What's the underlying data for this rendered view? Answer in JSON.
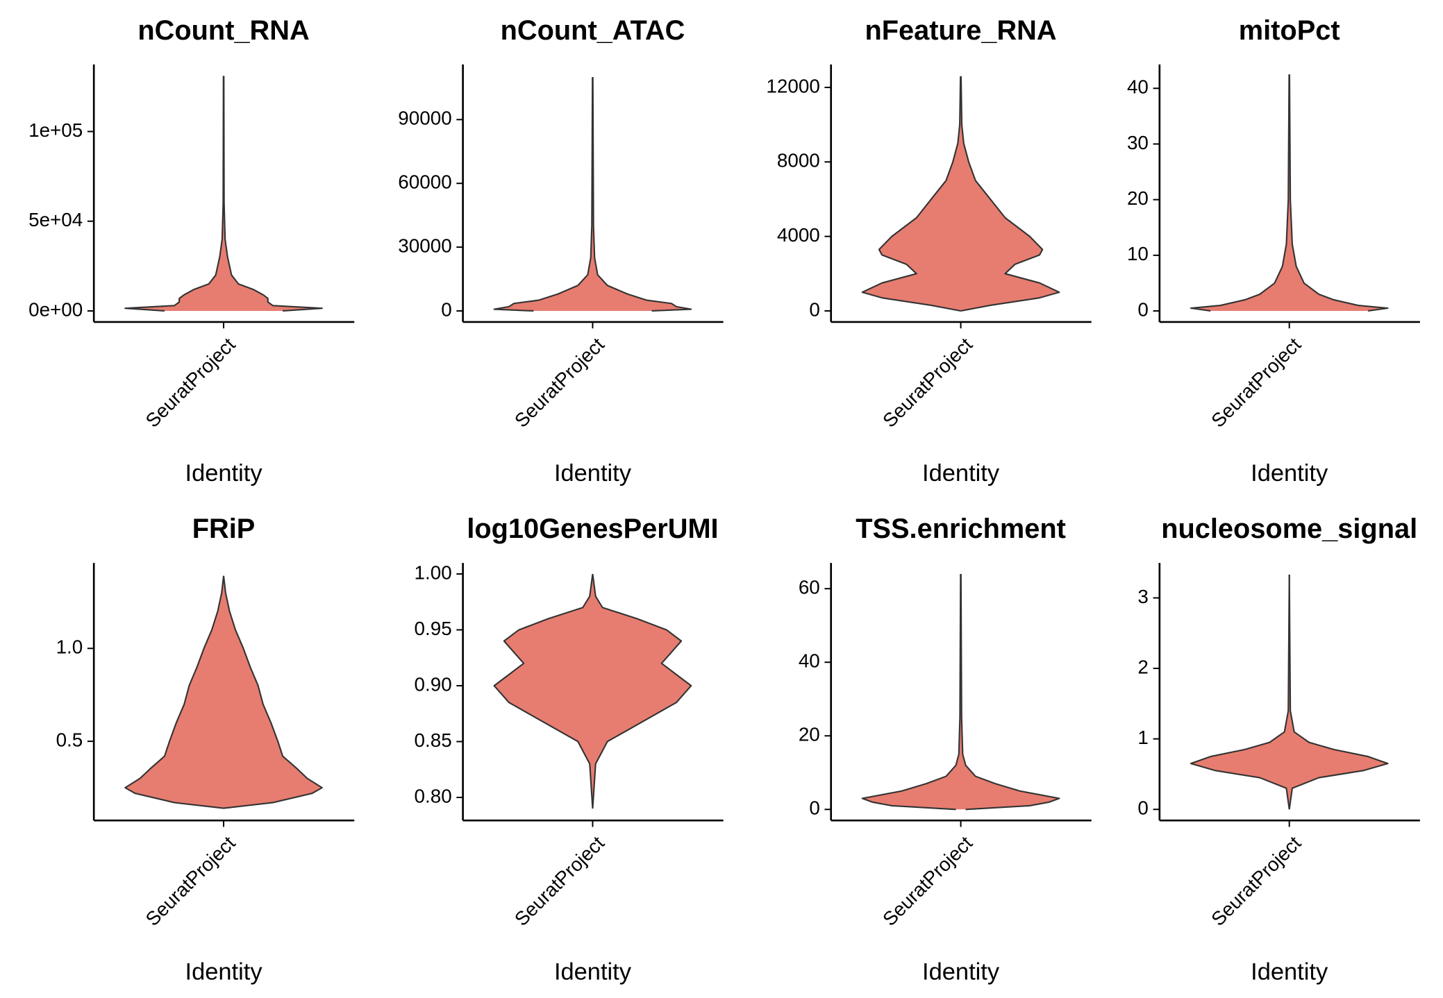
{
  "chart_data": [
    {
      "type": "violin",
      "title": "nCount_RNA",
      "categories": [
        "SeuratProject"
      ],
      "x_label": "Identity",
      "color": "#E77D70",
      "ylim": [
        -6150,
        137400
      ],
      "yticks": [
        {
          "value": 0,
          "label": "0e+00"
        },
        {
          "value": 50000,
          "label": "5e+04"
        },
        {
          "value": 100000,
          "label": "1e+05"
        }
      ],
      "values": [
        0,
        1500,
        3000,
        5000,
        7000,
        9000,
        12000,
        15000,
        20000,
        30000,
        40000,
        60000,
        131000
      ],
      "widths": [
        0.6,
        1.0,
        0.5,
        0.45,
        0.45,
        0.4,
        0.3,
        0.15,
        0.08,
        0.04,
        0.015,
        0.005,
        0.002
      ]
    },
    {
      "type": "violin",
      "title": "nCount_ATAC",
      "categories": [
        "SeuratProject"
      ],
      "x_label": "Identity",
      "color": "#E77D70",
      "ylim": [
        -5190,
        115960
      ],
      "yticks": [
        0,
        30000,
        60000,
        90000
      ],
      "values": [
        0,
        800,
        2000,
        3500,
        5000,
        8000,
        12000,
        17000,
        25000,
        40000,
        110000
      ],
      "widths": [
        0.6,
        1.0,
        0.85,
        0.8,
        0.55,
        0.35,
        0.15,
        0.05,
        0.02,
        0.008,
        0.002
      ]
    },
    {
      "type": "violin",
      "title": "nFeature_RNA",
      "categories": [
        "SeuratProject"
      ],
      "x_label": "Identity",
      "color": "#E77D70",
      "ylim": [
        -593,
        13235
      ],
      "yticks": [
        0,
        4000,
        8000,
        12000
      ],
      "values": [
        0,
        300,
        700,
        1000,
        1500,
        2000,
        2500,
        3000,
        3300,
        4000,
        5000,
        6000,
        7000,
        8000,
        9000,
        10000,
        12600
      ],
      "widths": [
        0,
        0.3,
        0.8,
        1.0,
        0.8,
        0.45,
        0.55,
        0.8,
        0.83,
        0.7,
        0.45,
        0.3,
        0.15,
        0.08,
        0.03,
        0.01,
        0.003
      ]
    },
    {
      "type": "violin",
      "title": "mitoPct",
      "categories": [
        "SeuratProject"
      ],
      "x_label": "Identity",
      "color": "#E77D70",
      "ylim": [
        -1.98,
        44.3
      ],
      "yticks": [
        0,
        10,
        20,
        30,
        40
      ],
      "values": [
        0,
        0.5,
        1,
        2,
        3,
        5,
        8,
        12,
        20,
        42.5
      ],
      "widths": [
        0.8,
        1.0,
        0.7,
        0.45,
        0.3,
        0.15,
        0.07,
        0.03,
        0.01,
        0.002
      ]
    },
    {
      "type": "violin",
      "title": "FRiP",
      "categories": [
        "SeuratProject"
      ],
      "x_label": "Identity",
      "color": "#E77D70",
      "ylim": [
        0.074,
        1.46
      ],
      "yticks": [
        0.5,
        {
          "value": 1,
          "label": "1.0"
        }
      ],
      "values": [
        0.14,
        0.17,
        0.22,
        0.25,
        0.3,
        0.35,
        0.42,
        0.5,
        0.6,
        0.7,
        0.8,
        0.9,
        1.0,
        1.1,
        1.2,
        1.3,
        1.39
      ],
      "widths": [
        0,
        0.5,
        0.9,
        1.0,
        0.85,
        0.75,
        0.6,
        0.55,
        0.48,
        0.4,
        0.35,
        0.27,
        0.2,
        0.12,
        0.06,
        0.02,
        0
      ]
    },
    {
      "type": "violin",
      "title": "log10GenesPerUMI",
      "categories": [
        "SeuratProject"
      ],
      "x_label": "Identity",
      "color": "#E77D70",
      "ylim": [
        0.7794,
        1.0099
      ],
      "yticks": [
        {
          "value": 0.8,
          "label": "0.80"
        },
        0.85,
        {
          "value": 0.9,
          "label": "0.90"
        },
        0.95,
        {
          "value": 1,
          "label": "1.00"
        }
      ],
      "values": [
        0.79,
        0.83,
        0.85,
        0.87,
        0.885,
        0.9,
        0.91,
        0.92,
        0.93,
        0.94,
        0.95,
        0.96,
        0.97,
        0.98,
        1.0
      ],
      "widths": [
        0,
        0.03,
        0.15,
        0.55,
        0.85,
        1.0,
        0.85,
        0.7,
        0.8,
        0.9,
        0.75,
        0.45,
        0.1,
        0.03,
        0
      ]
    },
    {
      "type": "violin",
      "title": "TSS.enrichment",
      "categories": [
        "SeuratProject"
      ],
      "x_label": "Identity",
      "color": "#E77D70",
      "ylim": [
        -3,
        67
      ],
      "yticks": [
        0,
        20,
        40,
        60
      ],
      "values": [
        0,
        1,
        2,
        3,
        5,
        7,
        9,
        12,
        15,
        25,
        64
      ],
      "widths": [
        0.05,
        0.7,
        0.9,
        1.0,
        0.6,
        0.35,
        0.15,
        0.05,
        0.02,
        0.008,
        0.002
      ]
    },
    {
      "type": "violin",
      "title": "nucleosome_signal",
      "categories": [
        "SeuratProject"
      ],
      "x_label": "Identity",
      "color": "#E77D70",
      "ylim": [
        -0.157,
        3.496
      ],
      "yticks": [
        0,
        1,
        2,
        3
      ],
      "values": [
        0,
        0.3,
        0.45,
        0.55,
        0.65,
        0.75,
        0.85,
        0.95,
        1.1,
        1.4,
        3.33
      ],
      "widths": [
        0,
        0.03,
        0.3,
        0.75,
        1.0,
        0.8,
        0.45,
        0.2,
        0.05,
        0.01,
        0
      ]
    }
  ]
}
